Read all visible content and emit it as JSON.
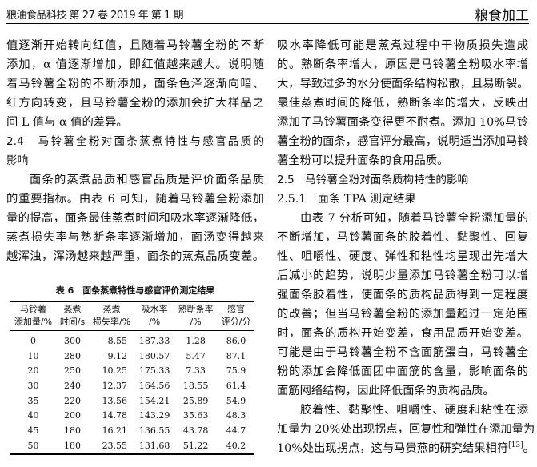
{
  "header": {
    "journal": "粮油食品科技 第 27 卷 2019 年 第 1 期",
    "section": "粮食加工"
  },
  "left": {
    "lines": [
      {
        "text": "值逐渐开始转向红值，且随着马铃薯全粉的不断"
      },
      {
        "text": "添加，α 值逐渐增加，即红值越来越大。说明随"
      },
      {
        "text": "着马铃薯全粉的不断添加，面条色泽逐渐向暗、"
      },
      {
        "text": "红方向转变，且马铃薯全粉的添加会扩大样品之"
      },
      {
        "text": "间 L 值与 α 值的差异。",
        "type": "last"
      },
      {
        "text": "2.4　马铃薯全粉对面条蒸煮特性与感官品质的",
        "type": "heading"
      },
      {
        "text": "影响",
        "type": "heading-last"
      },
      {
        "text": "面条的蒸煮品质和感官品质是评价面条品质",
        "type": "indent"
      },
      {
        "text": "的重要指标。由表 6 可知，随着马铃薯全粉添加"
      },
      {
        "text": "量的提高，面条最佳蒸煮时间和吸水率逐渐降低，"
      },
      {
        "text": "蒸煮损失率与熟断条率逐渐增加，面汤变得越来"
      },
      {
        "text": "越浑浊，浑汤越来越严重，面条的蒸煮品质变差。"
      }
    ]
  },
  "right": {
    "lines": [
      {
        "text": "吸水率降低可能是蒸煮过程中干物质损失造成"
      },
      {
        "text": "的。熟断条率增大，原因是马铃薯全粉吸水率增"
      },
      {
        "text": "大，导致过多的水分使面条结构松散，且易断裂。"
      },
      {
        "text": "最佳蒸煮时间的降低，熟断条率的增大，反映出"
      },
      {
        "text": "添加了马铃薯面条变得更不耐煮。添加 10%马铃"
      },
      {
        "text": "薯全粉的面条，感官评分最高，说明适当添加马铃"
      },
      {
        "text": "薯全粉可以提升面条的食用品质。",
        "type": "last"
      },
      {
        "text": "2.5　马铃薯全粉对面条质构特性的影响",
        "type": "heading-last"
      },
      {
        "text": "2.5.1　面条 TPA 测定结果",
        "type": "last"
      },
      {
        "text": "由表 7 分析可知，随着马铃薯全粉添加量的",
        "type": "indent"
      },
      {
        "text": "不断增加，马铃薯面条的胶着性、黏聚性、回复"
      },
      {
        "text": "性、咀嚼性、硬度、弹性和粘性均呈现出先增大"
      },
      {
        "text": "后减小的趋势，说明少量添加马铃薯全粉可以增"
      },
      {
        "text": "强面条胶着性，使面条的质构品质得到一定程度"
      },
      {
        "text": "的改善；但当马铃薯全粉的添加量超过一定范围"
      },
      {
        "text": "时，面条的质构开始变差，食用品质开始变差。"
      },
      {
        "text": "可能是由于马铃薯全粉不含面筋蛋白，马铃薯全"
      },
      {
        "text": "粉的添加会降低面团中面筋的含量，影响面条的"
      },
      {
        "text": "面筋网络结构，因此降低面条的质构品质。",
        "type": "last"
      },
      {
        "text": "胶着性、黏聚性、咀嚼性、硬度和粘性在添",
        "type": "indent"
      },
      {
        "text": "加量为 20%处出现拐点，回复性和弹性在添加量为"
      },
      {
        "text": "10%处出现拐点，这与马贵燕的研究结果相符",
        "sup": "[13]",
        "tail": "。",
        "type": "last"
      }
    ]
  },
  "table6": {
    "title": "表 6　面条蒸煮特性与感官评价测定结果",
    "headers": [
      [
        "马铃薯",
        "添加量/%"
      ],
      [
        "蒸煮",
        "时间/s"
      ],
      [
        "蒸煮",
        "损失率/%"
      ],
      [
        "吸水率",
        "/%"
      ],
      [
        "熟断条率",
        "/%"
      ],
      [
        "感官",
        "评分/分"
      ]
    ],
    "rows": [
      [
        "0",
        "300",
        "8.55",
        "187.33",
        "1.28",
        "86.0"
      ],
      [
        "10",
        "280",
        "9.12",
        "180.57",
        "5.47",
        "87.1"
      ],
      [
        "20",
        "250",
        "10.25",
        "175.33",
        "7.33",
        "75.9"
      ],
      [
        "30",
        "240",
        "12.37",
        "164.56",
        "18.55",
        "61.4"
      ],
      [
        "35",
        "220",
        "13.56",
        "154.21",
        "25.89",
        "54.9"
      ],
      [
        "40",
        "200",
        "14.78",
        "143.29",
        "35.63",
        "48.3"
      ],
      [
        "45",
        "180",
        "16.21",
        "136.55",
        "43.78",
        "44.7"
      ],
      [
        "50",
        "180",
        "23.55",
        "131.68",
        "51.22",
        "40.2"
      ]
    ]
  }
}
